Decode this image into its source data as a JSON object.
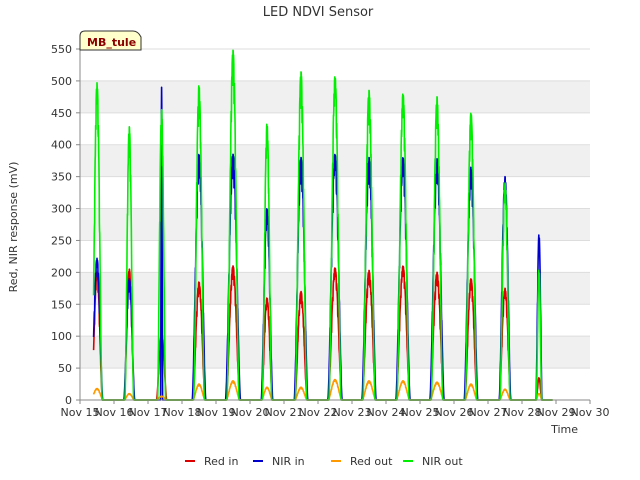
{
  "chart_data": {
    "type": "line",
    "title": "LED NDVI Sensor",
    "xlabel": "Time",
    "ylabel": "Red, NIR response (mV)",
    "badge": "MB_tule",
    "x_ticks": [
      "Nov 15",
      "Nov 16",
      "Nov 17",
      "Nov 18",
      "Nov 19",
      "Nov 20",
      "Nov 21",
      "Nov 22",
      "Nov 23",
      "Nov 24",
      "Nov 25",
      "Nov 26",
      "Nov 27",
      "Nov 28",
      "Nov 29",
      "Nov 30"
    ],
    "y_ticks": [
      0,
      50,
      100,
      150,
      200,
      250,
      300,
      350,
      400,
      450,
      500,
      550
    ],
    "xlim": [
      15,
      30
    ],
    "ylim": [
      0,
      550
    ],
    "grid": true,
    "legend_position": "bottom",
    "series": [
      {
        "name": "Red in",
        "color": "#dd0000",
        "peaks": [
          {
            "day": 15.5,
            "value": 200,
            "width": 0.16
          },
          {
            "day": 16.45,
            "value": 205,
            "width": 0.15
          },
          {
            "day": 17.4,
            "value": 105,
            "width": 0.15
          },
          {
            "day": 18.5,
            "value": 185,
            "width": 0.18
          },
          {
            "day": 19.5,
            "value": 210,
            "width": 0.2
          },
          {
            "day": 20.5,
            "value": 160,
            "width": 0.16
          },
          {
            "day": 21.5,
            "value": 170,
            "width": 0.18
          },
          {
            "day": 22.5,
            "value": 207,
            "width": 0.2
          },
          {
            "day": 23.5,
            "value": 203,
            "width": 0.2
          },
          {
            "day": 24.5,
            "value": 210,
            "width": 0.2
          },
          {
            "day": 25.5,
            "value": 200,
            "width": 0.2
          },
          {
            "day": 26.5,
            "value": 190,
            "width": 0.18
          },
          {
            "day": 27.5,
            "value": 175,
            "width": 0.17
          },
          {
            "day": 28.5,
            "value": 35,
            "width": 0.08
          }
        ]
      },
      {
        "name": "NIR in",
        "color": "#0000cc",
        "peaks": [
          {
            "day": 15.5,
            "value": 222,
            "width": 0.17
          },
          {
            "day": 16.45,
            "value": 190,
            "width": 0.16
          },
          {
            "day": 17.4,
            "value": 490,
            "width": 0.03
          },
          {
            "day": 18.5,
            "value": 385,
            "width": 0.2
          },
          {
            "day": 19.5,
            "value": 385,
            "width": 0.22
          },
          {
            "day": 20.5,
            "value": 300,
            "width": 0.17
          },
          {
            "day": 21.5,
            "value": 380,
            "width": 0.2
          },
          {
            "day": 22.5,
            "value": 385,
            "width": 0.21
          },
          {
            "day": 23.5,
            "value": 380,
            "width": 0.21
          },
          {
            "day": 24.5,
            "value": 380,
            "width": 0.21
          },
          {
            "day": 25.5,
            "value": 378,
            "width": 0.21
          },
          {
            "day": 26.5,
            "value": 365,
            "width": 0.2
          },
          {
            "day": 27.5,
            "value": 350,
            "width": 0.17
          },
          {
            "day": 28.5,
            "value": 260,
            "width": 0.09
          }
        ]
      },
      {
        "name": "Red out",
        "color": "#ff9900",
        "peaks": [
          {
            "day": 15.5,
            "value": 18,
            "width": 0.18
          },
          {
            "day": 16.45,
            "value": 10,
            "width": 0.15
          },
          {
            "day": 17.4,
            "value": 6,
            "width": 0.15
          },
          {
            "day": 18.5,
            "value": 25,
            "width": 0.18
          },
          {
            "day": 19.5,
            "value": 30,
            "width": 0.2
          },
          {
            "day": 20.5,
            "value": 20,
            "width": 0.16
          },
          {
            "day": 21.5,
            "value": 20,
            "width": 0.18
          },
          {
            "day": 22.5,
            "value": 32,
            "width": 0.2
          },
          {
            "day": 23.5,
            "value": 30,
            "width": 0.2
          },
          {
            "day": 24.5,
            "value": 30,
            "width": 0.2
          },
          {
            "day": 25.5,
            "value": 28,
            "width": 0.2
          },
          {
            "day": 26.5,
            "value": 25,
            "width": 0.18
          },
          {
            "day": 27.5,
            "value": 17,
            "width": 0.16
          },
          {
            "day": 28.5,
            "value": 10,
            "width": 0.09
          }
        ]
      },
      {
        "name": "NIR out",
        "color": "#00ee00",
        "peaks": [
          {
            "day": 15.5,
            "value": 497,
            "width": 0.15
          },
          {
            "day": 16.45,
            "value": 428,
            "width": 0.13
          },
          {
            "day": 17.4,
            "value": 455,
            "width": 0.12
          },
          {
            "day": 18.5,
            "value": 493,
            "width": 0.16
          },
          {
            "day": 19.5,
            "value": 548,
            "width": 0.18
          },
          {
            "day": 20.5,
            "value": 433,
            "width": 0.14
          },
          {
            "day": 21.5,
            "value": 514,
            "width": 0.17
          },
          {
            "day": 22.5,
            "value": 507,
            "width": 0.18
          },
          {
            "day": 23.5,
            "value": 485,
            "width": 0.18
          },
          {
            "day": 24.5,
            "value": 480,
            "width": 0.18
          },
          {
            "day": 25.5,
            "value": 475,
            "width": 0.17
          },
          {
            "day": 26.5,
            "value": 450,
            "width": 0.17
          },
          {
            "day": 27.5,
            "value": 340,
            "width": 0.15
          },
          {
            "day": 28.5,
            "value": 205,
            "width": 0.08
          }
        ]
      }
    ]
  }
}
